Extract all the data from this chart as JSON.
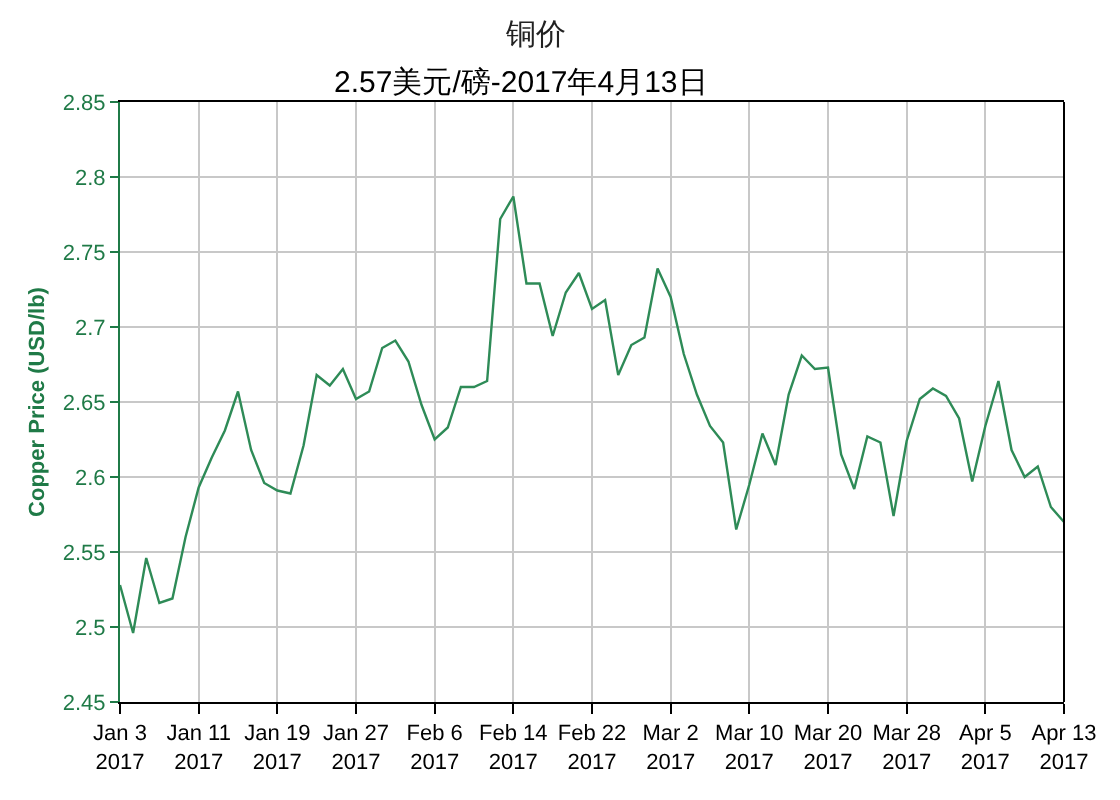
{
  "chart_data": {
    "type": "line",
    "title": "铜价",
    "subtitle": "2.57美元/磅-2017年4月13日",
    "ylabel": "Copper Price (USD/lb)",
    "categories": [
      "Jan 3\n2017",
      null,
      null,
      null,
      null,
      null,
      "Jan 11\n2017",
      null,
      null,
      null,
      null,
      null,
      "Jan 19\n2017",
      null,
      null,
      null,
      null,
      null,
      "Jan 27\n2017",
      null,
      null,
      null,
      null,
      null,
      "Feb 6\n2017",
      null,
      null,
      null,
      null,
      null,
      "Feb 14\n2017",
      null,
      null,
      null,
      null,
      null,
      "Feb 22\n2017",
      null,
      null,
      null,
      null,
      null,
      "Mar 2\n2017",
      null,
      null,
      null,
      null,
      null,
      "Mar 10\n2017",
      null,
      null,
      null,
      null,
      null,
      "Mar 20\n2017",
      null,
      null,
      null,
      null,
      null,
      "Mar 28\n2017",
      null,
      null,
      null,
      null,
      null,
      "Apr 5\n2017",
      null,
      null,
      null,
      null,
      null,
      "Apr 13\n2017"
    ],
    "series": [
      {
        "color": "#2e8b57",
        "values": [
          2.528,
          2.496,
          2.546,
          2.516,
          2.519,
          2.56,
          2.593,
          2.613,
          2.631,
          2.657,
          2.618,
          2.596,
          2.591,
          2.589,
          2.621,
          2.668,
          2.661,
          2.672,
          2.652,
          2.657,
          2.686,
          2.691,
          2.677,
          2.648,
          2.625,
          2.633,
          2.66,
          2.66,
          2.664,
          2.772,
          2.787,
          2.729,
          2.729,
          2.694,
          2.723,
          2.736,
          2.712,
          2.718,
          2.668,
          2.688,
          2.693,
          2.739,
          2.72,
          2.682,
          2.655,
          2.634,
          2.623,
          2.565,
          2.595,
          2.629,
          2.608,
          2.655,
          2.681,
          2.672,
          2.673,
          2.615,
          2.592,
          2.627,
          2.623,
          2.574,
          2.624,
          2.652,
          2.659,
          2.654,
          2.639,
          2.597,
          2.634,
          2.664,
          2.618,
          2.6,
          2.607,
          2.58,
          2.57
        ]
      }
    ],
    "ylim": [
      2.45,
      2.85
    ],
    "yticks": [
      2.45,
      2.5,
      2.55,
      2.6,
      2.65,
      2.7,
      2.75,
      2.8,
      2.85
    ],
    "grid": true
  }
}
